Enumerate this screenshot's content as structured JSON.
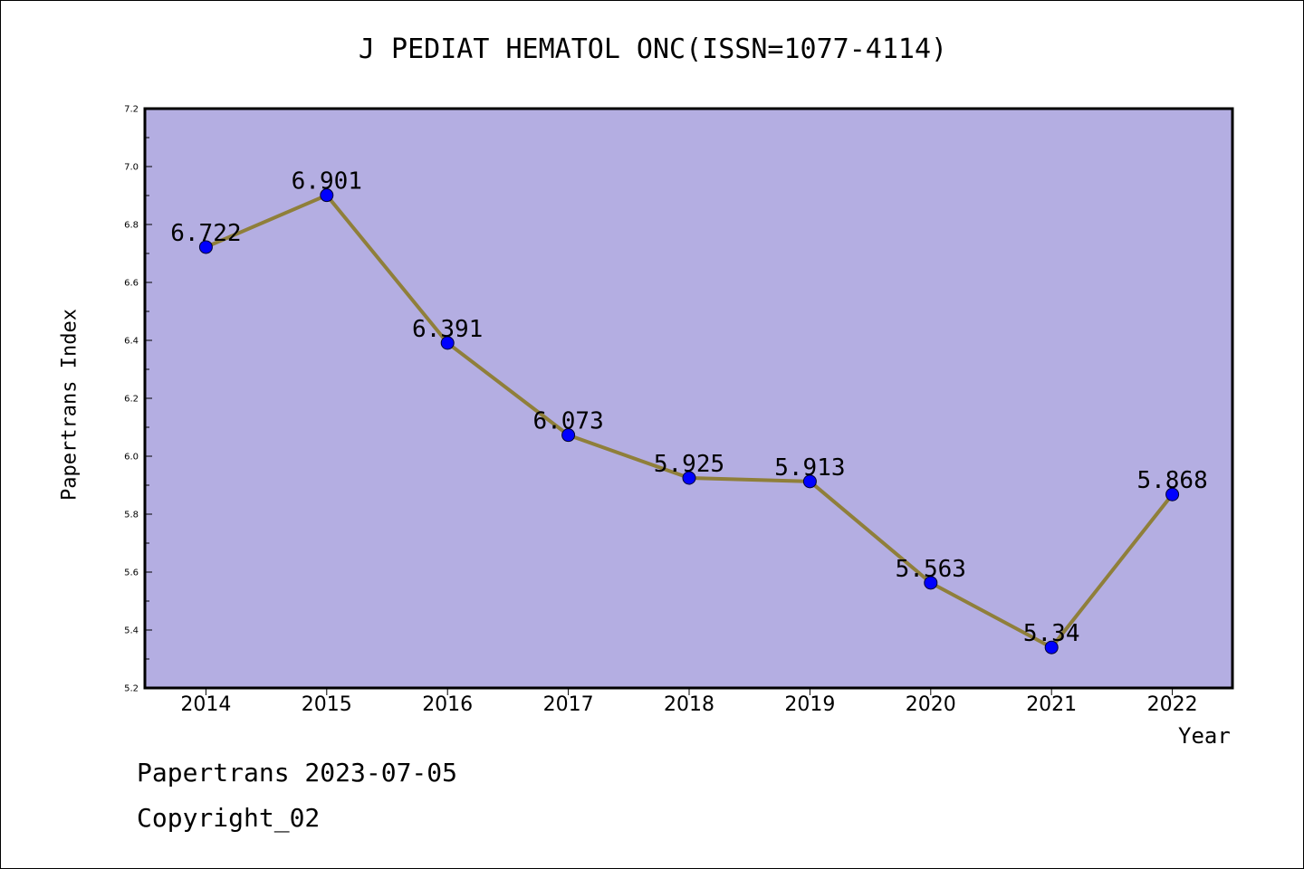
{
  "chart_data": {
    "type": "line",
    "title": "J PEDIAT HEMATOL ONC(ISSN=1077-4114)",
    "xlabel": "Year",
    "ylabel": "Papertrans Index",
    "categories": [
      "2014",
      "2015",
      "2016",
      "2017",
      "2018",
      "2019",
      "2020",
      "2021",
      "2022"
    ],
    "series": [
      {
        "values": [
          6.722,
          6.901,
          6.391,
          6.073,
          5.925,
          5.913,
          5.563,
          5.34,
          5.868
        ],
        "labels": [
          "6.722",
          "6.901",
          "6.391",
          "6.073",
          "5.925",
          "5.913",
          "5.563",
          "5.34",
          "5.868"
        ]
      }
    ],
    "ylim": [
      5.2,
      7.2
    ],
    "yticks": [
      "5.2",
      "5.4",
      "5.6",
      "5.8",
      "6.0",
      "6.2",
      "6.4",
      "6.6",
      "6.8",
      "7.0",
      "7.2"
    ],
    "grid": false,
    "colors": {
      "plot_background": "#b4aee2",
      "line": "#8f7f3a",
      "marker": "#0000ff"
    }
  },
  "footer": {
    "source": "Papertrans 2023-07-05",
    "copyright": "Copyright_02"
  }
}
